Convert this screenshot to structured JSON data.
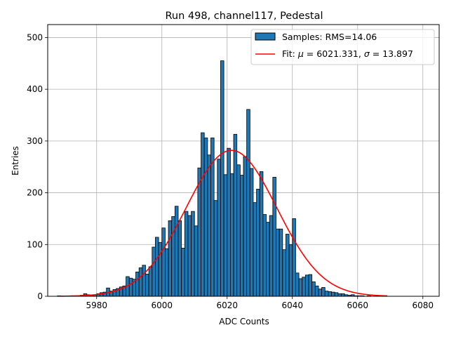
{
  "chart_data": {
    "type": "bar",
    "title": "Run 498, channel117, Pedestal",
    "xlabel": "ADC Counts",
    "ylabel": "Entries",
    "xlim": [
      5965,
      6085
    ],
    "ylim": [
      0,
      525
    ],
    "xticks": [
      5980,
      6000,
      6020,
      6040,
      6060,
      6080
    ],
    "yticks": [
      0,
      100,
      200,
      300,
      400,
      500
    ],
    "grid": true,
    "legend_position": "top-right",
    "colors": {
      "bars": "#1f77b4",
      "bar_edge": "#000000",
      "fit": "#ff0000",
      "grid": "#b0b0b0"
    },
    "histogram": {
      "name": "Samples: RMS=14.06",
      "bin_start": 5968,
      "bin_width": 1,
      "counts": [
        1,
        0,
        0,
        0,
        1,
        0,
        1,
        2,
        5,
        3,
        2,
        3,
        5,
        7,
        8,
        16,
        10,
        13,
        15,
        18,
        20,
        38,
        35,
        33,
        47,
        55,
        60,
        43,
        57,
        95,
        114,
        104,
        132,
        92,
        146,
        154,
        174,
        146,
        93,
        164,
        156,
        164,
        136,
        248,
        316,
        306,
        273,
        306,
        185,
        265,
        455,
        235,
        286,
        237,
        313,
        254,
        234,
        270,
        361,
        247,
        181,
        207,
        241,
        158,
        143,
        156,
        230,
        130,
        130,
        90,
        120,
        100,
        150,
        45,
        34,
        37,
        41,
        42,
        28,
        20,
        14,
        17,
        10,
        9,
        8,
        7,
        5,
        5,
        3,
        2,
        3,
        1,
        1,
        1,
        0,
        1,
        0,
        0,
        0,
        0,
        1
      ]
    },
    "fit": {
      "name": "Fit: μ = 6021.331, σ = 13.897",
      "label_parts": [
        "Fit: ",
        "μ",
        " = 6021.331, ",
        "σ",
        " = 13.897"
      ],
      "mu": 6021.331,
      "sigma": 13.897,
      "amplitude": 282,
      "x_range": [
        5968,
        6069
      ]
    }
  }
}
